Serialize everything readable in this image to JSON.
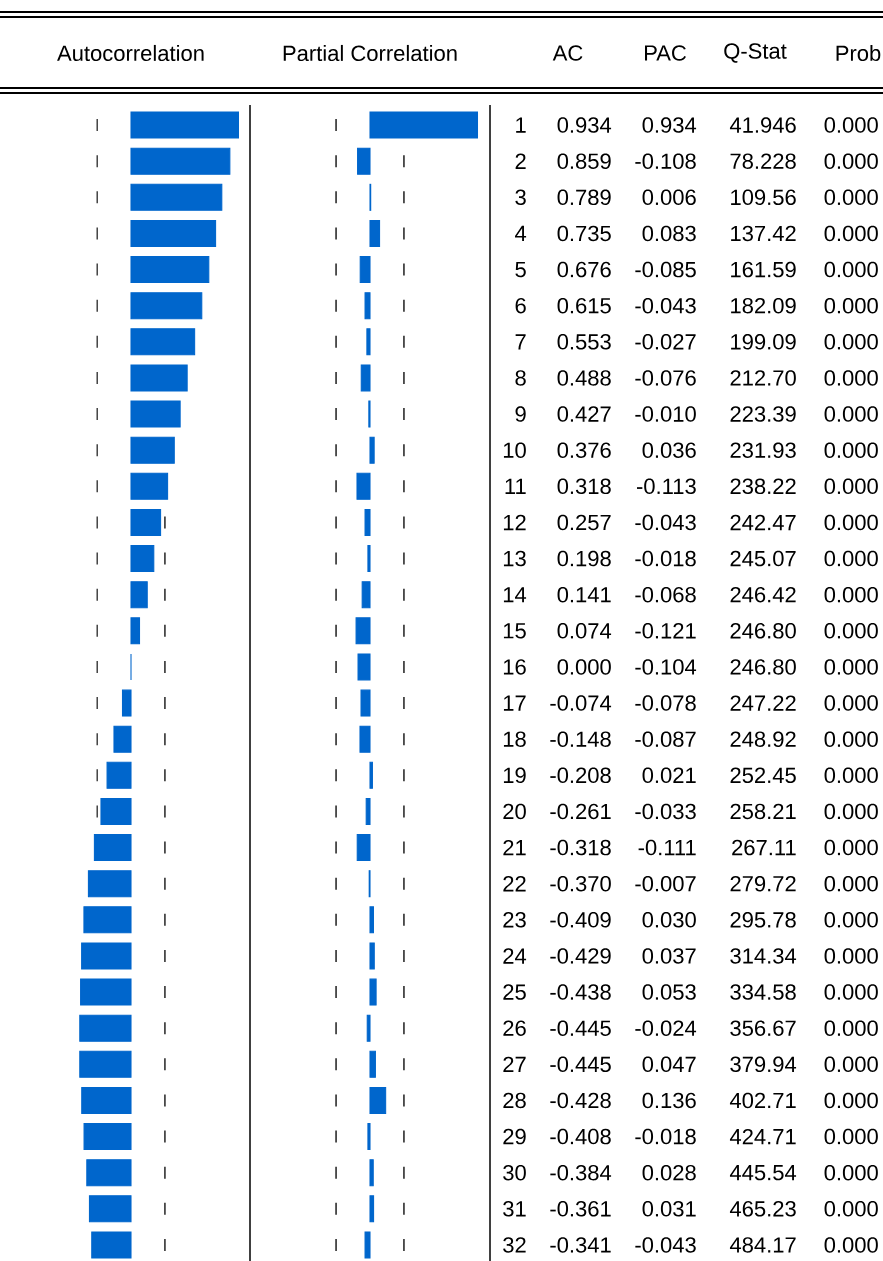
{
  "chart_data": [
    {
      "type": "bar",
      "orientation": "horizontal",
      "title": "Autocorrelation",
      "annotations": [
        "AC"
      ],
      "categories": [
        "1",
        "2",
        "3",
        "4",
        "5",
        "6",
        "7",
        "8",
        "9",
        "10",
        "11",
        "12",
        "13",
        "14",
        "15",
        "16",
        "17",
        "18",
        "19",
        "20",
        "21",
        "22",
        "23",
        "24",
        "25",
        "26",
        "27",
        "28",
        "29",
        "30",
        "31",
        "32"
      ],
      "values": [
        0.934,
        0.859,
        0.789,
        0.735,
        0.676,
        0.615,
        0.553,
        0.488,
        0.427,
        0.376,
        0.318,
        0.257,
        0.198,
        0.141,
        0.074,
        0.0,
        -0.074,
        -0.148,
        -0.208,
        -0.261,
        -0.318,
        -0.37,
        -0.409,
        -0.429,
        -0.438,
        -0.445,
        -0.445,
        -0.428,
        -0.408,
        -0.384,
        -0.361,
        -0.341
      ],
      "value_labels": [
        "0.934",
        "0.859",
        "0.789",
        "0.735",
        "0.676",
        "0.615",
        "0.553",
        "0.488",
        "0.427",
        "0.376",
        "0.318",
        "0.257",
        "0.198",
        "0.141",
        "0.074",
        "0.000",
        "-0.074",
        "-0.148",
        "-0.208",
        "-0.261",
        "-0.318",
        "-0.370",
        "-0.409",
        "-0.429",
        "-0.438",
        "-0.445",
        "-0.445",
        "-0.428",
        "-0.408",
        "-0.384",
        "-0.361",
        "-0.341"
      ],
      "color": "#0066cc",
      "tick_labels": false,
      "ref_lines": [
        {
          "axis": "x",
          "value": -0.295,
          "line_style": "dashed",
          "color": "#000000"
        },
        {
          "axis": "x",
          "value": 0.295,
          "line_style": "dashed",
          "color": "#000000"
        }
      ]
    },
    {
      "type": "bar",
      "orientation": "horizontal",
      "title": "Partial Correlation",
      "annotations": [
        "PAC"
      ],
      "categories": [
        null,
        null,
        null,
        null,
        null,
        null,
        null,
        null,
        null,
        null,
        null,
        null,
        null,
        null,
        null,
        null,
        null,
        null,
        null,
        null,
        null,
        null,
        null,
        null,
        null,
        null,
        null,
        null,
        null,
        null,
        null,
        null
      ],
      "values": [
        0.934,
        -0.108,
        0.006,
        0.083,
        -0.085,
        -0.043,
        -0.027,
        -0.076,
        -0.01,
        0.036,
        -0.113,
        -0.043,
        -0.018,
        -0.068,
        -0.121,
        -0.104,
        -0.078,
        -0.087,
        0.021,
        -0.033,
        -0.111,
        -0.007,
        0.03,
        0.037,
        0.053,
        -0.024,
        0.047,
        0.136,
        -0.018,
        0.028,
        0.031,
        -0.043
      ],
      "value_labels": [
        "0.934",
        "-0.108",
        "0.006",
        "0.083",
        "-0.085",
        "-0.043",
        "-0.027",
        "-0.076",
        "-0.010",
        "0.036",
        "-0.113",
        "-0.043",
        "-0.018",
        "-0.068",
        "-0.121",
        "-0.104",
        "-0.078",
        "-0.087",
        "0.021",
        "-0.033",
        "-0.111",
        "-0.007",
        "0.030",
        "0.037",
        "0.053",
        "-0.024",
        "0.047",
        "0.136",
        "-0.018",
        "0.028",
        "0.031",
        "-0.043"
      ],
      "color": "#0066cc",
      "tick_labels": false,
      "ref_lines": [
        {
          "axis": "x",
          "value": -0.295,
          "line_style": "dashed",
          "color": "#000000"
        },
        {
          "axis": "x",
          "value": 0.295,
          "line_style": "dashed",
          "color": "#000000"
        }
      ]
    },
    {
      "type": "other",
      "title": "Q-Stat",
      "values": [
        41.946,
        78.228,
        109.56,
        137.42,
        161.59,
        182.09,
        199.09,
        212.7,
        223.39,
        231.93,
        238.22,
        242.47,
        245.07,
        246.42,
        246.8,
        246.8,
        247.22,
        248.92,
        252.45,
        258.21,
        267.11,
        279.72,
        295.78,
        314.34,
        334.58,
        356.67,
        379.94,
        402.71,
        424.71,
        445.54,
        465.23,
        484.17
      ],
      "value_labels": [
        "41.946",
        "78.228",
        "109.56",
        "137.42",
        "161.59",
        "182.09",
        "199.09",
        "212.70",
        "223.39",
        "231.93",
        "238.22",
        "242.47",
        "245.07",
        "246.42",
        "246.80",
        "246.80",
        "247.22",
        "248.92",
        "252.45",
        "258.21",
        "267.11",
        "279.72",
        "295.78",
        "314.34",
        "334.58",
        "356.67",
        "379.94",
        "402.71",
        "424.71",
        "445.54",
        "465.23",
        "484.17"
      ]
    },
    {
      "type": "other",
      "title": "Prob",
      "values": [
        0,
        0,
        0,
        0,
        0,
        0,
        0,
        0,
        0,
        0,
        0,
        0,
        0,
        0,
        0,
        0,
        0,
        0,
        0,
        0,
        0,
        0,
        0,
        0,
        0,
        0,
        0,
        0,
        0,
        0,
        0,
        0
      ],
      "value_labels": [
        "0.000",
        "0.000",
        "0.000",
        "0.000",
        "0.000",
        "0.000",
        "0.000",
        "0.000",
        "0.000",
        "0.000",
        "0.000",
        "0.000",
        "0.000",
        "0.000",
        "0.000",
        "0.000",
        "0.000",
        "0.000",
        "0.000",
        "0.000",
        "0.000",
        "0.000",
        "0.000",
        "0.000",
        "0.000",
        "0.000",
        "0.000",
        "0.000",
        "0.000",
        "0.000",
        "0.000",
        "0.000"
      ]
    }
  ]
}
